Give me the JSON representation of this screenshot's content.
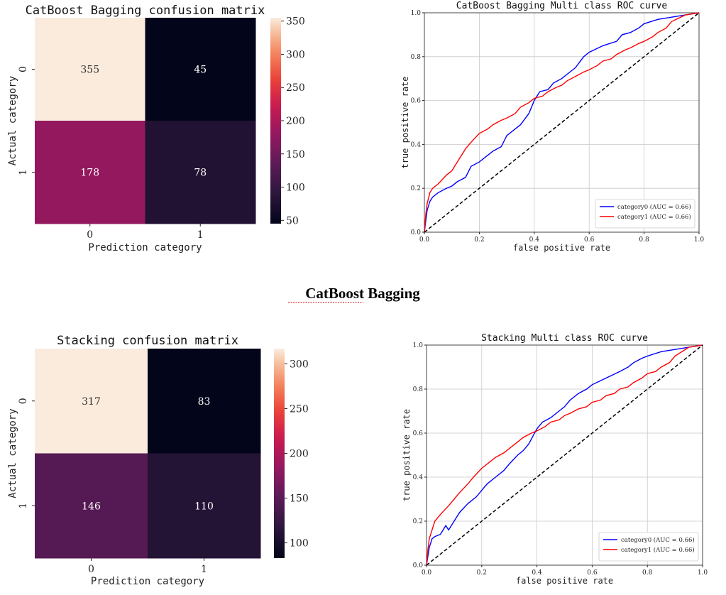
{
  "caption": "CatBoost Bagging",
  "chart_data": [
    {
      "type": "heatmap",
      "title": "CatBoost Bagging confusion matrix",
      "xlabel": "Prediction category",
      "ylabel": "Actual category",
      "x_categories": [
        "0",
        "1"
      ],
      "y_categories": [
        "0",
        "1"
      ],
      "values": [
        [
          355,
          45
        ],
        [
          178,
          78
        ]
      ],
      "colorbar": {
        "min": 45,
        "max": 355,
        "ticks": [
          50,
          100,
          150,
          200,
          250,
          300,
          350
        ]
      }
    },
    {
      "type": "line",
      "title": "CatBoost Bagging Multi class ROC curve",
      "xlabel": "false positive rate",
      "ylabel": "true positive rate",
      "xlim": [
        0,
        1
      ],
      "ylim": [
        0,
        1
      ],
      "xticks": [
        "0.0",
        "0.2",
        "0.4",
        "0.6",
        "0.8",
        "1.0"
      ],
      "yticks": [
        "0.0",
        "0.2",
        "0.4",
        "0.6",
        "0.8",
        "1.0"
      ],
      "grid": true,
      "legend": "lower-right",
      "series": [
        {
          "name": "category0 (AUC = 0.66)",
          "color": "#0000ff",
          "x": [
            0,
            0.005,
            0.01,
            0.02,
            0.03,
            0.05,
            0.08,
            0.1,
            0.12,
            0.15,
            0.17,
            0.2,
            0.22,
            0.25,
            0.28,
            0.3,
            0.33,
            0.35,
            0.38,
            0.4,
            0.42,
            0.45,
            0.47,
            0.5,
            0.52,
            0.55,
            0.58,
            0.6,
            0.65,
            0.7,
            0.72,
            0.75,
            0.78,
            0.8,
            0.85,
            0.9,
            0.95,
            1.0
          ],
          "y": [
            0,
            0.05,
            0.1,
            0.14,
            0.16,
            0.18,
            0.2,
            0.21,
            0.23,
            0.25,
            0.3,
            0.32,
            0.34,
            0.37,
            0.39,
            0.44,
            0.47,
            0.49,
            0.54,
            0.6,
            0.64,
            0.65,
            0.68,
            0.7,
            0.72,
            0.75,
            0.8,
            0.82,
            0.85,
            0.87,
            0.9,
            0.91,
            0.93,
            0.95,
            0.97,
            0.98,
            0.99,
            1.0
          ]
        },
        {
          "name": "category1 (AUC = 0.66)",
          "color": "#ff0000",
          "x": [
            0,
            0.005,
            0.01,
            0.02,
            0.03,
            0.05,
            0.08,
            0.1,
            0.12,
            0.15,
            0.17,
            0.2,
            0.23,
            0.25,
            0.28,
            0.3,
            0.33,
            0.35,
            0.38,
            0.4,
            0.43,
            0.45,
            0.48,
            0.5,
            0.52,
            0.55,
            0.58,
            0.6,
            0.63,
            0.65,
            0.68,
            0.7,
            0.73,
            0.75,
            0.78,
            0.8,
            0.83,
            0.85,
            0.88,
            0.9,
            0.95,
            1.0
          ],
          "y": [
            0,
            0.08,
            0.13,
            0.18,
            0.2,
            0.22,
            0.26,
            0.28,
            0.32,
            0.38,
            0.41,
            0.45,
            0.47,
            0.49,
            0.51,
            0.52,
            0.54,
            0.57,
            0.59,
            0.61,
            0.62,
            0.64,
            0.66,
            0.67,
            0.69,
            0.71,
            0.73,
            0.74,
            0.76,
            0.78,
            0.79,
            0.81,
            0.83,
            0.84,
            0.86,
            0.87,
            0.89,
            0.91,
            0.93,
            0.96,
            0.99,
            1.0
          ]
        },
        {
          "name": "",
          "color": "#000000",
          "style": "dashed",
          "x": [
            0,
            1
          ],
          "y": [
            0,
            1
          ]
        }
      ]
    },
    {
      "type": "heatmap",
      "title": "Stacking confusion matrix",
      "xlabel": "Prediction category",
      "ylabel": "Actual category",
      "x_categories": [
        "0",
        "1"
      ],
      "y_categories": [
        "0",
        "1"
      ],
      "values": [
        [
          317,
          83
        ],
        [
          146,
          110
        ]
      ],
      "colorbar": {
        "min": 83,
        "max": 317,
        "ticks": [
          100,
          150,
          200,
          250,
          300
        ]
      }
    },
    {
      "type": "line",
      "title": "Stacking Multi class ROC curve",
      "xlabel": "false positive rate",
      "ylabel": "true positive rate",
      "xlim": [
        0,
        1
      ],
      "ylim": [
        0,
        1
      ],
      "xticks": [
        "0.0",
        "0.2",
        "0.4",
        "0.6",
        "0.8",
        "1.0"
      ],
      "yticks": [
        "0.0",
        "0.2",
        "0.4",
        "0.6",
        "0.8",
        "1.0"
      ],
      "grid": true,
      "legend": "lower-right",
      "series": [
        {
          "name": "category0 (AUC = 0.66)",
          "color": "#0000ff",
          "x": [
            0,
            0.005,
            0.01,
            0.02,
            0.03,
            0.05,
            0.07,
            0.08,
            0.1,
            0.12,
            0.15,
            0.18,
            0.2,
            0.22,
            0.25,
            0.28,
            0.3,
            0.33,
            0.35,
            0.37,
            0.4,
            0.42,
            0.45,
            0.48,
            0.5,
            0.52,
            0.55,
            0.58,
            0.6,
            0.65,
            0.7,
            0.73,
            0.75,
            0.78,
            0.8,
            0.85,
            0.9,
            0.95,
            1.0
          ],
          "y": [
            0,
            0.04,
            0.08,
            0.12,
            0.13,
            0.14,
            0.18,
            0.16,
            0.2,
            0.24,
            0.28,
            0.31,
            0.34,
            0.37,
            0.4,
            0.43,
            0.46,
            0.5,
            0.52,
            0.55,
            0.62,
            0.65,
            0.67,
            0.7,
            0.72,
            0.75,
            0.78,
            0.8,
            0.82,
            0.85,
            0.88,
            0.9,
            0.92,
            0.94,
            0.95,
            0.97,
            0.98,
            0.99,
            1.0
          ]
        },
        {
          "name": "category1 (AUC = 0.66)",
          "color": "#ff0000",
          "x": [
            0,
            0.005,
            0.01,
            0.02,
            0.03,
            0.05,
            0.08,
            0.1,
            0.12,
            0.15,
            0.17,
            0.2,
            0.23,
            0.25,
            0.28,
            0.3,
            0.33,
            0.35,
            0.38,
            0.4,
            0.43,
            0.45,
            0.48,
            0.5,
            0.52,
            0.55,
            0.58,
            0.6,
            0.63,
            0.65,
            0.68,
            0.7,
            0.73,
            0.75,
            0.78,
            0.8,
            0.83,
            0.85,
            0.88,
            0.9,
            0.95,
            1.0
          ],
          "y": [
            0,
            0.07,
            0.12,
            0.16,
            0.2,
            0.23,
            0.27,
            0.3,
            0.33,
            0.37,
            0.4,
            0.44,
            0.47,
            0.49,
            0.51,
            0.53,
            0.56,
            0.58,
            0.6,
            0.61,
            0.63,
            0.65,
            0.66,
            0.68,
            0.69,
            0.71,
            0.72,
            0.74,
            0.75,
            0.77,
            0.78,
            0.8,
            0.81,
            0.83,
            0.85,
            0.87,
            0.88,
            0.9,
            0.92,
            0.95,
            0.99,
            1.0
          ]
        },
        {
          "name": "",
          "color": "#000000",
          "style": "dashed",
          "x": [
            0,
            1
          ],
          "y": [
            0,
            1
          ]
        }
      ]
    }
  ]
}
